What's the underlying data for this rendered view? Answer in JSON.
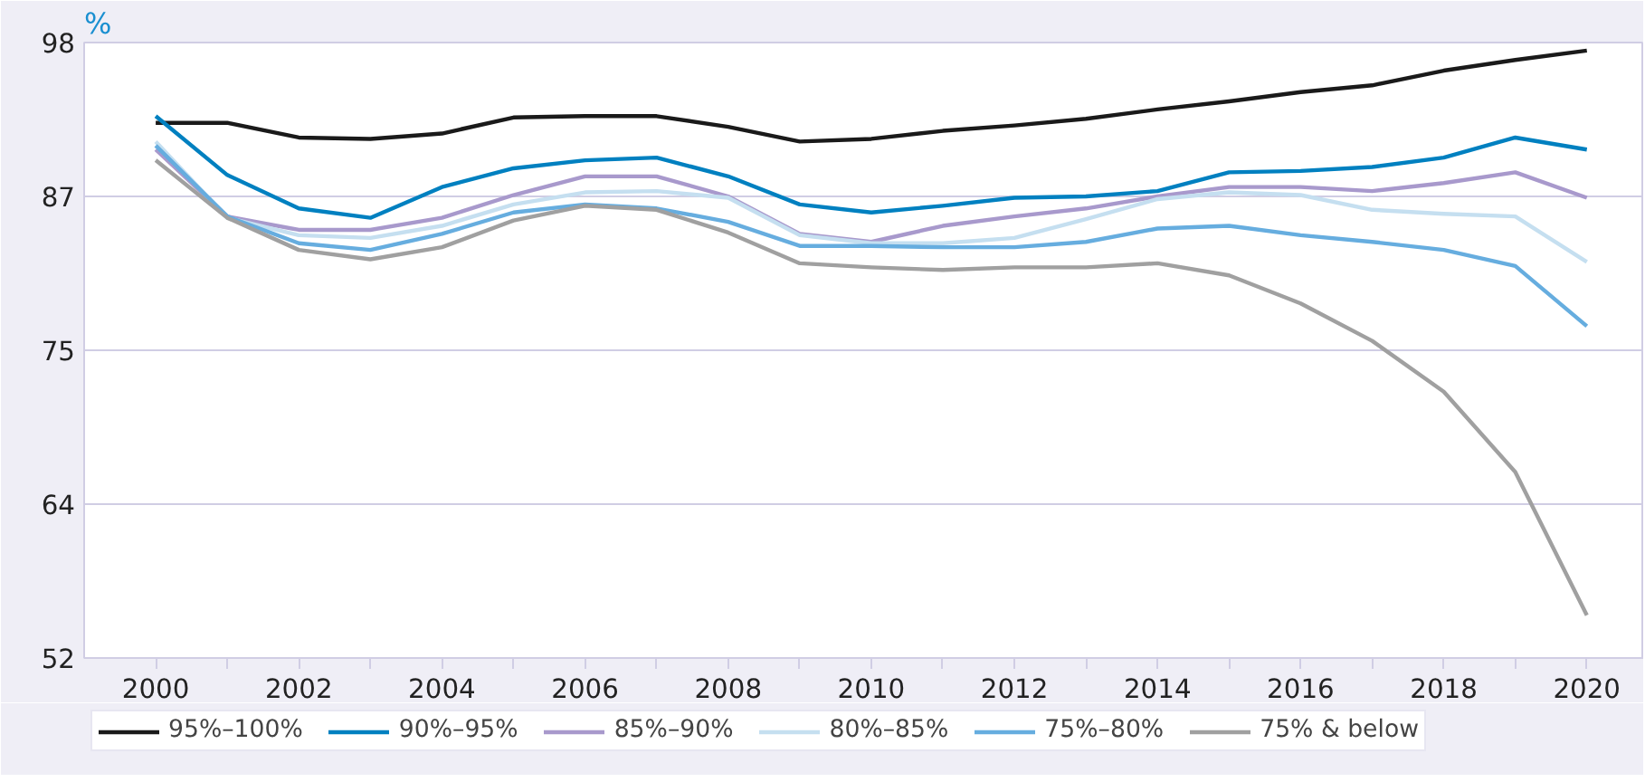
{
  "chart_data": {
    "type": "line",
    "ylabel": "%",
    "x": [
      2000,
      2001,
      2002,
      2003,
      2004,
      2005,
      2006,
      2007,
      2008,
      2009,
      2010,
      2011,
      2012,
      2013,
      2014,
      2015,
      2016,
      2017,
      2018,
      2019,
      2020
    ],
    "xlim": [
      1999,
      2020.8
    ],
    "xticks": [
      2000,
      {
        "value": 2001,
        "label": null
      },
      2002,
      {
        "value": 2003,
        "label": null
      },
      2004,
      {
        "value": 2005,
        "label": null
      },
      2006,
      {
        "value": 2007,
        "label": null
      },
      2008,
      {
        "value": 2009,
        "label": null
      },
      2010,
      {
        "value": 2011,
        "label": null
      },
      2012,
      {
        "value": 2013,
        "label": null
      },
      2014,
      {
        "value": 2015,
        "label": null
      },
      2016,
      {
        "value": 2017,
        "label": null
      },
      2018,
      {
        "value": 2019,
        "label": null
      },
      2020
    ],
    "ylim": [
      52,
      98
    ],
    "yticks": [
      52,
      {
        "value": 63.5,
        "label": "64"
      },
      75,
      {
        "value": 86.5,
        "label": "87"
      },
      98
    ],
    "grid": "y",
    "legend": "bottom",
    "line_style": "solid",
    "marker": "none",
    "series": [
      {
        "name": "95%–100%",
        "color": "#1a1a1a",
        "values": [
          92.0,
          92.0,
          90.9,
          90.8,
          91.2,
          92.4,
          92.5,
          92.5,
          91.7,
          90.6,
          90.8,
          91.4,
          91.8,
          92.3,
          93.0,
          93.6,
          94.3,
          94.8,
          95.9,
          96.7,
          97.4
        ]
      },
      {
        "name": "90%–95%",
        "color": "#0080c0",
        "values": [
          92.5,
          88.1,
          85.6,
          84.9,
          87.2,
          88.6,
          89.2,
          89.4,
          88.0,
          85.9,
          85.3,
          85.8,
          86.4,
          86.5,
          86.9,
          88.3,
          88.4,
          88.7,
          89.4,
          90.9,
          90.0
        ]
      },
      {
        "name": "85%–90%",
        "color": "#a899cc",
        "values": [
          90.0,
          85.0,
          84.0,
          84.0,
          84.9,
          86.6,
          88.0,
          88.0,
          86.5,
          83.7,
          83.1,
          84.3,
          85.0,
          85.6,
          86.5,
          87.2,
          87.2,
          86.9,
          87.5,
          88.3,
          86.4
        ]
      },
      {
        "name": "80%–85%",
        "color": "#c5dff0",
        "values": [
          90.6,
          84.9,
          83.6,
          83.4,
          84.3,
          85.9,
          86.8,
          86.9,
          86.4,
          83.6,
          83.0,
          83.0,
          83.4,
          84.8,
          86.3,
          86.8,
          86.6,
          85.5,
          85.2,
          85.0,
          81.6
        ]
      },
      {
        "name": "75%–80%",
        "color": "#66addf",
        "values": [
          90.3,
          85.0,
          83.0,
          82.5,
          83.7,
          85.3,
          85.9,
          85.6,
          84.6,
          82.8,
          82.8,
          82.7,
          82.7,
          83.1,
          84.1,
          84.3,
          83.6,
          83.1,
          82.5,
          81.3,
          76.8
        ]
      },
      {
        "name": "75% & below",
        "color": "#a0a0a0",
        "values": [
          89.2,
          84.9,
          82.5,
          81.8,
          82.7,
          84.7,
          85.8,
          85.5,
          83.8,
          81.5,
          81.2,
          81.0,
          81.2,
          81.2,
          81.5,
          80.6,
          78.5,
          75.7,
          71.9,
          65.9,
          55.2
        ]
      }
    ]
  }
}
